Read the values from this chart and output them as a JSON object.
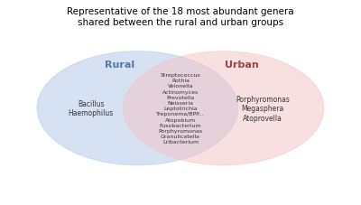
{
  "title": "Representative of the 18 most abundant genera\nshared between the rural and urban groups",
  "rural_label": "Rural",
  "urban_label": "Urban",
  "rural_only": [
    "Bacillus\nHaemophilus"
  ],
  "shared": [
    "Streptococcus",
    "Rothia",
    "Veionella",
    "Actinomyces",
    "Prevotella",
    "Neisseria",
    "Leptotrichia",
    "Treponema/BPP...",
    "Atopobium",
    "Fusobacterium",
    "Porphyromonas",
    "Granulicatella",
    "Lribacterium"
  ],
  "urban_only": [
    "Porphyromonas\nMegasphera\nAtoprovella"
  ],
  "rural_circle_color": "#AEC6E8",
  "urban_circle_color": "#F4C2C2",
  "rural_circle_alpha": 0.5,
  "urban_circle_alpha": 0.5,
  "background_color": "#ffffff",
  "title_fontsize": 7.5,
  "label_fontsize": 8,
  "text_fontsize": 5.5
}
